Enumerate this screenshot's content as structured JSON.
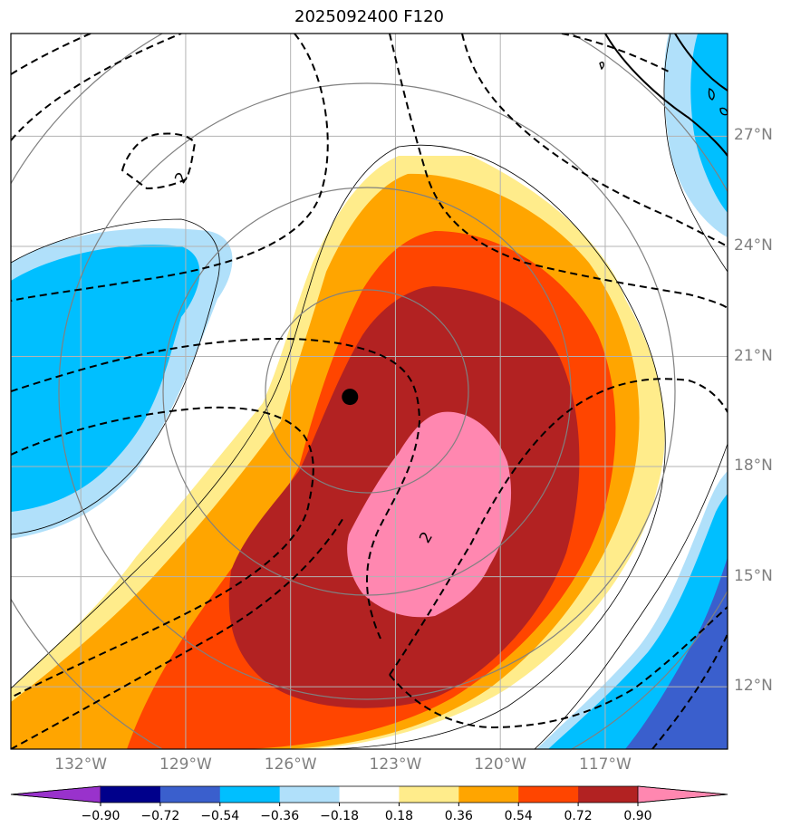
{
  "chart_data": {
    "type": "heatmap",
    "title": "2025092400 F120",
    "map": {
      "lon_range": [
        -134,
        -113.5
      ],
      "lat_range": [
        10.3,
        29.8
      ],
      "lat_ticks": [
        27,
        24,
        21,
        18,
        15,
        12
      ],
      "lat_tick_labels": [
        "27°N",
        "24°N",
        "21°N",
        "18°N",
        "15°N",
        "12°N"
      ],
      "lon_ticks": [
        -132,
        -129,
        -126,
        -123,
        -120,
        -117
      ],
      "lon_tick_labels": [
        "132°W",
        "129°W",
        "126°W",
        "123°W",
        "120°W",
        "117°W"
      ],
      "grid": true
    },
    "storm_center": {
      "lon": -124.3,
      "lat": 19.9
    },
    "contour_labels": [
      {
        "text": "2",
        "lon": -129.0,
        "lat": 25.8
      },
      {
        "text": "2",
        "lon": -122.0,
        "lat": 16.0
      }
    ],
    "colorbar": {
      "levels": [
        -0.9,
        -0.72,
        -0.54,
        -0.36,
        -0.18,
        0.18,
        0.36,
        0.54,
        0.72,
        0.9
      ],
      "tick_labels": [
        "−0.90",
        "−0.72",
        "−0.54",
        "−0.36",
        "−0.18",
        "0.18",
        "0.36",
        "0.54",
        "0.72",
        "0.90"
      ],
      "colors": [
        "#9932cc",
        "#00008b",
        "#3a5fcd",
        "#00bfff",
        "#b0e0fa",
        "#ffffff",
        "#ffec8b",
        "#ffa500",
        "#ff4500",
        "#b22222",
        "#ff87b0"
      ],
      "extend": "both"
    }
  }
}
